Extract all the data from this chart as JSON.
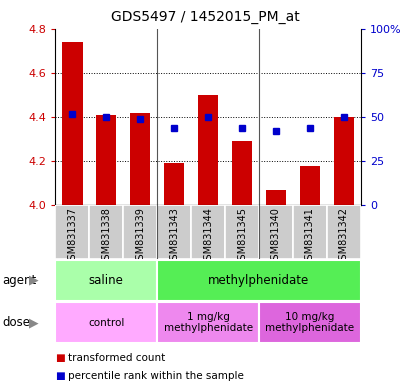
{
  "title": "GDS5497 / 1452015_PM_at",
  "samples": [
    "GSM831337",
    "GSM831338",
    "GSM831339",
    "GSM831343",
    "GSM831344",
    "GSM831345",
    "GSM831340",
    "GSM831341",
    "GSM831342"
  ],
  "bar_values": [
    4.74,
    4.41,
    4.42,
    4.19,
    4.5,
    4.29,
    4.07,
    4.18,
    4.4
  ],
  "percentile_values": [
    52,
    50,
    49,
    44,
    50,
    44,
    42,
    44,
    50
  ],
  "ylim": [
    4.0,
    4.8
  ],
  "yticks_left": [
    4.0,
    4.2,
    4.4,
    4.6,
    4.8
  ],
  "yticks_right": [
    0,
    25,
    50,
    75,
    100
  ],
  "bar_color": "#cc0000",
  "dot_color": "#0000cc",
  "agent_groups": [
    {
      "label": "saline",
      "start": 0,
      "end": 3,
      "color": "#aaffaa"
    },
    {
      "label": "methylphenidate",
      "start": 3,
      "end": 9,
      "color": "#55ee55"
    }
  ],
  "dose_groups": [
    {
      "label": "control",
      "start": 0,
      "end": 3,
      "color": "#ffaaff"
    },
    {
      "label": "1 mg/kg\nmethylphenidate",
      "start": 3,
      "end": 6,
      "color": "#ee88ee"
    },
    {
      "label": "10 mg/kg\nmethylphenidate",
      "start": 6,
      "end": 9,
      "color": "#dd66dd"
    }
  ],
  "legend_items": [
    {
      "label": "transformed count",
      "color": "#cc0000"
    },
    {
      "label": "percentile rank within the sample",
      "color": "#0000cc"
    }
  ],
  "tick_fontsize": 8,
  "title_fontsize": 10,
  "bar_width": 0.6,
  "xtick_bg": "#cccccc",
  "xtick_sep": "#ffffff",
  "group_sep_color": "#555555"
}
